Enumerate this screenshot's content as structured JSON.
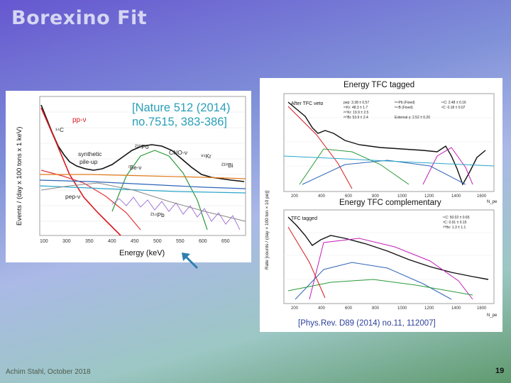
{
  "slide": {
    "title": "Borexino Fit",
    "author_date": "Achim Stahl, October 2018",
    "page_number": "19",
    "colors": {
      "accent_cyan": "#2aa0b8",
      "title_text": "#d6d6f2",
      "link_blue": "#2a3f9a",
      "arrow": "#2e7fb0"
    }
  },
  "left_figure": {
    "citation_line1": "[Nature 512 (2014)",
    "citation_line2": "no.7515, 383-386]",
    "ylabel": "Events / (day x 100 tons x 1 keV)",
    "xlabel": "Energy (keV)",
    "x_ticks": [
      "100",
      "300",
      "350",
      "400",
      "450",
      "500",
      "550",
      "600",
      "650"
    ],
    "labels": {
      "pp": "pp-ν",
      "c14": "¹⁴C",
      "pileup_1": "synthetic",
      "pileup_2": "pile-up",
      "po210": "²¹⁰Po",
      "cno": "CNO-ν",
      "kr85": "⁸⁵Kr",
      "be7": "⁷Be-ν",
      "bi210": "²¹⁰Bi",
      "pep": "pep-ν",
      "pb214": "²¹⁴Pb"
    }
  },
  "right_figure": {
    "top_title": "Energy TFC tagged",
    "bottom_title": "Energy TFC complementary",
    "citation": "[Phys.Rev. D89 (2014) no.11, 112007]",
    "ylabel": "Rate [counts / (day × 100 ton × 10 pe)]",
    "top_legend_label": "After TFC veto",
    "bottom_legend_label": "TFC tagged",
    "legend_top": [
      "pep: 3.38 ± 0.57",
      "⁸⁵Kr: 48.3 ± 1.7",
      "²¹⁰Kr: 19.9 ± 2.5",
      "²¹⁰Bi: 53.9 ± 2.4",
      "²¹⁴Pb (Fixed)",
      "²¹⁴B (Fixed)",
      "External γ: 2.52 ± 0.20",
      "¹¹C: 2.48 ± 0.16",
      "⁶C: 0.18 ± 0.07"
    ],
    "legend_bottom": [
      "¹¹C: 50.02 ± 0.65",
      "⁶C: 0.91 ± 0.15",
      "²⁰He: 1.3 ± 1.1"
    ],
    "x_ticks": [
      "200",
      "400",
      "600",
      "800",
      "1000",
      "1200",
      "1400",
      "1600"
    ],
    "x_unit": "N_pe"
  }
}
